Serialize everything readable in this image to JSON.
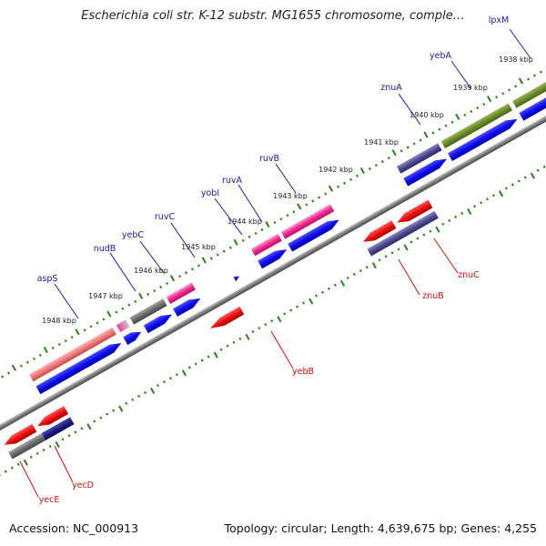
{
  "title": "Escherichia coli str. K-12 substr. MG1655 chromosome, comple…",
  "footer": {
    "accession": "Accession: NC_000913",
    "summary": "Topology: circular; Length: 4,639,675 bp; Genes: 4,255"
  },
  "kbp_labels": [
    "1938 kbp",
    "1939 kbp",
    "1940 kbp",
    "1941 kbp",
    "1942 kbp",
    "1943 kbp",
    "1944 kbp",
    "1945 kbp",
    "1946 kbp",
    "1947 kbp",
    "1948 kbp"
  ],
  "forward_genes": [
    "lpxM",
    "yebA",
    "znuA",
    "ruvB",
    "ruvA",
    "yobI",
    "ruvC",
    "yebC",
    "nudB",
    "aspS"
  ],
  "reverse_genes": [
    "znuC",
    "znuB",
    "yebB",
    "yecD",
    "yecE"
  ],
  "colors": {
    "forward_label": "#1a1aa6",
    "reverse_label": "#cc1111",
    "cds_blue": "#1010dd",
    "cds_red": "#dd1111",
    "tick_green": "#2e7d1c",
    "backbone": "#808080"
  }
}
